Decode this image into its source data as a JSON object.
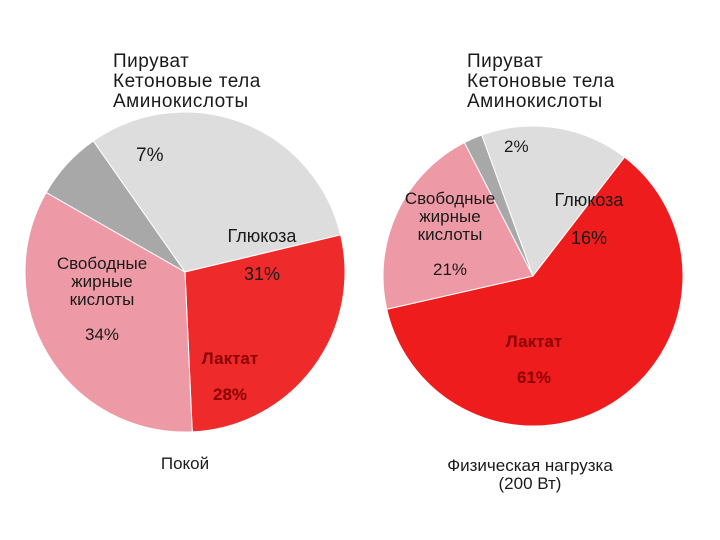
{
  "chart_data": [
    {
      "type": "pie",
      "caption": "Покой",
      "other_label": "Пируват\nКетоновые тела\nАминокислоты",
      "slices": [
        {
          "label": "Глюкоза",
          "value": 31,
          "display": "31%",
          "color": "#dddddd"
        },
        {
          "label": "Лактат",
          "value": 28,
          "display": "28%",
          "color": "#ee2a2a"
        },
        {
          "label": "Свободные\nжирные\nкислоты",
          "value": 34,
          "display": "34%",
          "color": "#ee9aa6"
        },
        {
          "label": "",
          "value": 7,
          "display": "7%",
          "color": "#a8a8a8"
        }
      ]
    },
    {
      "type": "pie",
      "caption": "Физическая нагрузка\n(200 Вт)",
      "other_label": "Пируват\nКетоновые тела\nАминокислоты",
      "slices": [
        {
          "label": "Глюкоза",
          "value": 16,
          "display": "16%",
          "color": "#dddddd"
        },
        {
          "label": "Лактат",
          "value": 61,
          "display": "61%",
          "color": "#ee1c1c"
        },
        {
          "label": "Свободные\nжирные\nкислоты",
          "value": 21,
          "display": "21%",
          "color": "#ee9aa6"
        },
        {
          "label": "",
          "value": 2,
          "display": "2%",
          "color": "#a8a8a8"
        }
      ]
    }
  ]
}
